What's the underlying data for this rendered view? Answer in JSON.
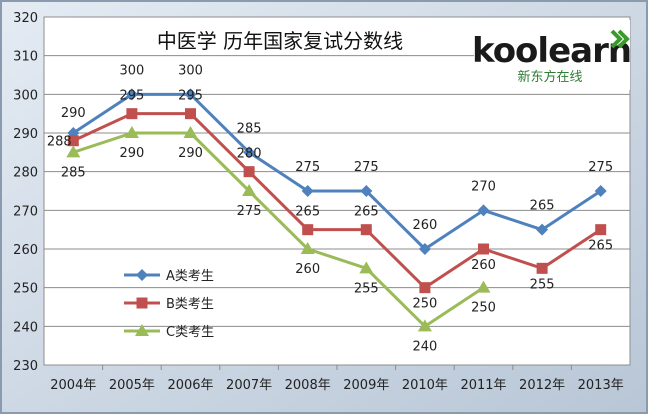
{
  "chart_data": {
    "type": "line",
    "title": "中医学 历年国家复试分数线",
    "categories": [
      "2004年",
      "2005年",
      "2006年",
      "2007年",
      "2008年",
      "2009年",
      "2010年",
      "2011年",
      "2012年",
      "2013年"
    ],
    "ylim": [
      230,
      320
    ],
    "yticks": [
      230,
      240,
      250,
      260,
      270,
      280,
      290,
      300,
      310,
      320
    ],
    "grid": true,
    "legend_position": "bottom-left",
    "series": [
      {
        "name": "A类考生",
        "color": "#4f81bd",
        "marker": "diamond",
        "values": [
          290,
          300,
          300,
          285,
          275,
          275,
          260,
          270,
          265,
          275
        ]
      },
      {
        "name": "B类考生",
        "color": "#c0504d",
        "marker": "square",
        "values": [
          288,
          295,
          295,
          280,
          265,
          265,
          250,
          260,
          255,
          265
        ]
      },
      {
        "name": "C类考生",
        "color": "#9bbb59",
        "marker": "triangle",
        "values": [
          285,
          290,
          290,
          275,
          260,
          255,
          240,
          250,
          null,
          null
        ]
      }
    ]
  },
  "brand": {
    "logo_text": "koolearn",
    "subtitle": "新东方在线",
    "accent": "#3a9a2a"
  }
}
